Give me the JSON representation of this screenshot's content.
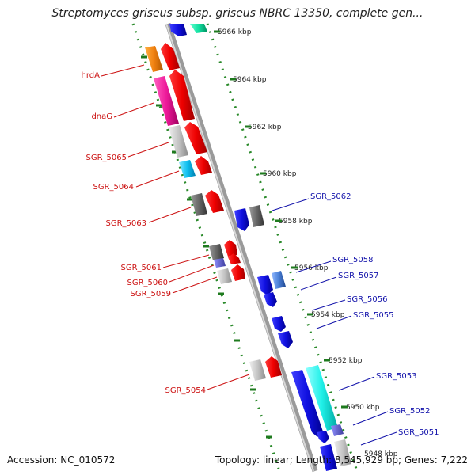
{
  "title": "Streptomyces griseus subsp. griseus NBRC 13350, complete gen...",
  "accession": "Accession: NC_010572",
  "summary": "Topology: linear; Length: 8,545,929 bp; Genes: 7,222",
  "scale_labels": [
    "5966 kbp",
    "5964 kbp",
    "5962 kbp",
    "5960 kbp",
    "5958 kbp",
    "5956 kbp",
    "5954 kbp",
    "5952 kbp",
    "5950 kbp",
    "5948 kbp"
  ],
  "left_genes": [
    "hrdA",
    "dnaG",
    "SGR_5065",
    "SGR_5064",
    "SGR_5063",
    "SGR_5061",
    "SGR_5060",
    "SGR_5059",
    "SGR_5054"
  ],
  "right_genes": [
    "SGR_5062",
    "SGR_5058",
    "SGR_5057",
    "SGR_5056",
    "SGR_5055",
    "SGR_5053",
    "SGR_5052",
    "SGR_5051"
  ],
  "colors": {
    "left_label": "#cc1111",
    "right_label": "#1111aa",
    "scale": "#2a8a2a",
    "axis": "#888888"
  }
}
